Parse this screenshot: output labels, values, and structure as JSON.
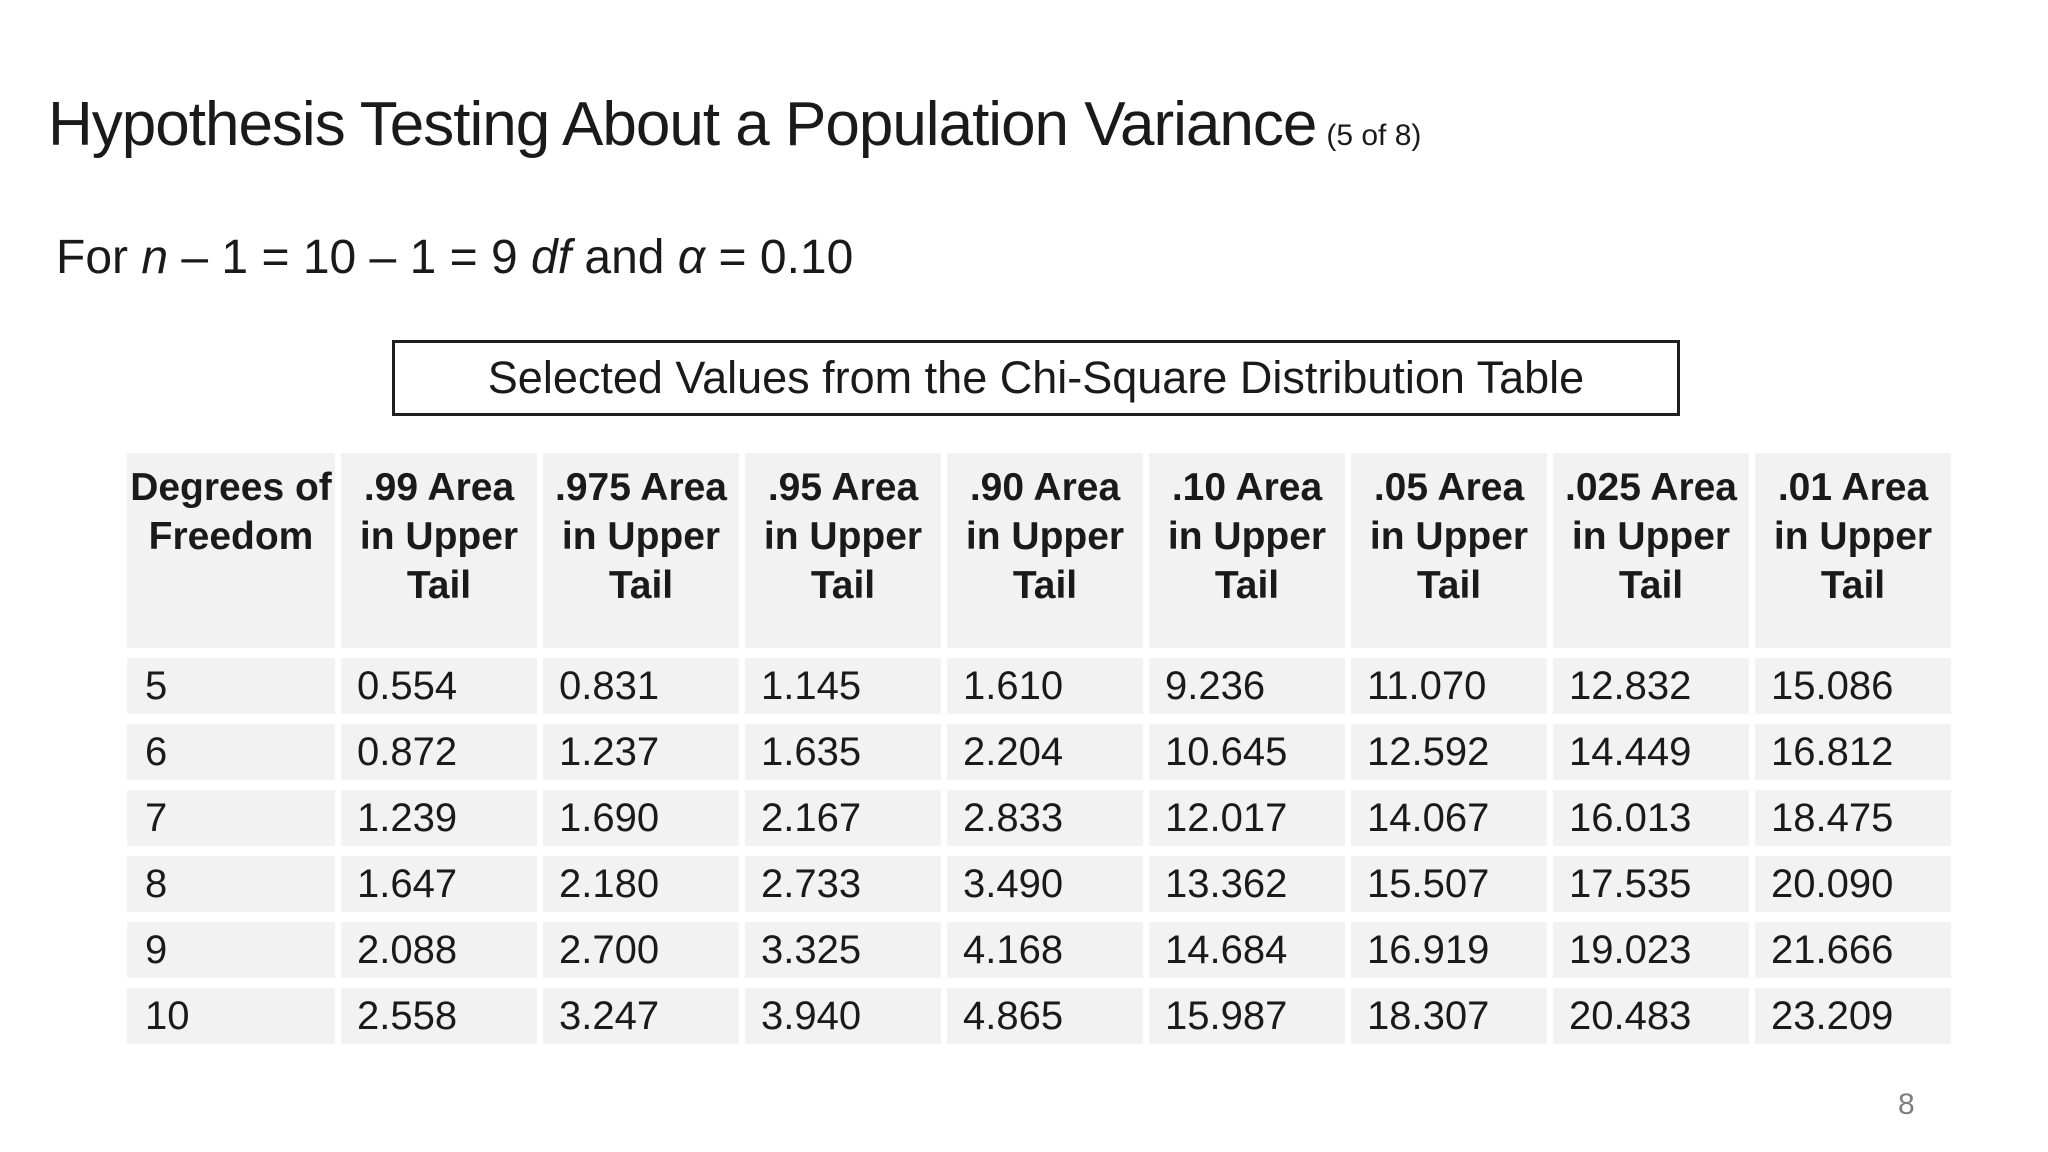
{
  "slide": {
    "title": "Hypothesis Testing About a Population Variance",
    "title_suffix": "(5 of 8)",
    "subtitle": {
      "plain": "For n – 1 = 10 – 1 = 9 df and α = 0.10",
      "segments": [
        {
          "text": "For ",
          "italic": false
        },
        {
          "text": "n",
          "italic": true
        },
        {
          "text": " – 1 = 10 – 1 = 9 ",
          "italic": false
        },
        {
          "text": "df",
          "italic": true
        },
        {
          "text": " and ",
          "italic": false
        },
        {
          "text": "α",
          "italic": true
        },
        {
          "text": " = 0.10",
          "italic": false
        }
      ]
    },
    "caption": "Selected Values from the Chi-Square Distribution Table",
    "page_number": "8"
  },
  "colors": {
    "background": "#ffffff",
    "cell_background": "#f2f2f2",
    "text": "#1a1a1a",
    "caption_border": "#1f1f1f",
    "page_number": "#7f7f7f"
  },
  "chart_data": {
    "type": "table",
    "title": "Selected Values from the Chi-Square Distribution Table",
    "columns": [
      "Degrees of\nFreedom",
      ".99 Area\nin Upper\nTail",
      ".975 Area\nin Upper\nTail",
      ".95 Area\nin Upper\nTail",
      ".90 Area\nin Upper\nTail",
      ".10 Area\nin Upper\nTail",
      ".05 Area\nin Upper\nTail",
      ".025 Area\nin Upper\nTail",
      ".01 Area\nin Upper\nTail"
    ],
    "rows": [
      [
        "5",
        "0.554",
        "0.831",
        "1.145",
        "1.610",
        "9.236",
        "11.070",
        "12.832",
        "15.086"
      ],
      [
        "6",
        "0.872",
        "1.237",
        "1.635",
        "2.204",
        "10.645",
        "12.592",
        "14.449",
        "16.812"
      ],
      [
        "7",
        "1.239",
        "1.690",
        "2.167",
        "2.833",
        "12.017",
        "14.067",
        "16.013",
        "18.475"
      ],
      [
        "8",
        "1.647",
        "2.180",
        "2.733",
        "3.490",
        "13.362",
        "15.507",
        "17.535",
        "20.090"
      ],
      [
        "9",
        "2.088",
        "2.700",
        "3.325",
        "4.168",
        "14.684",
        "16.919",
        "19.023",
        "21.666"
      ],
      [
        "10",
        "2.558",
        "3.247",
        "3.940",
        "4.865",
        "15.987",
        "18.307",
        "20.483",
        "23.209"
      ]
    ]
  }
}
